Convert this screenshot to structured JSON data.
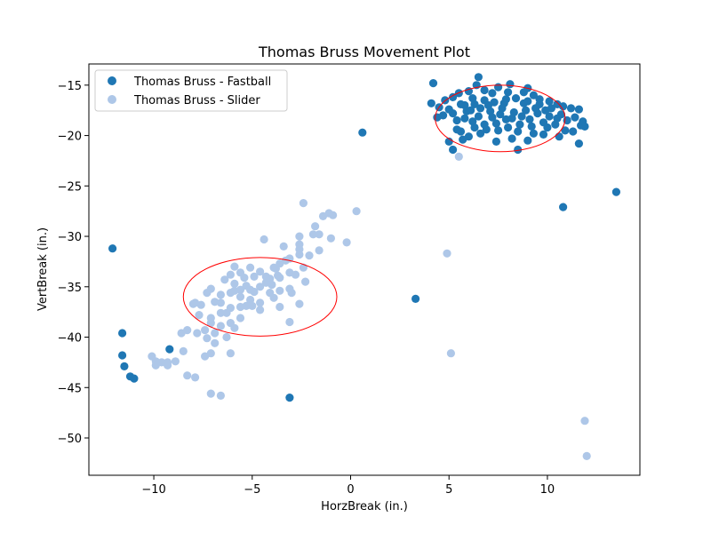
{
  "chart_data": {
    "type": "scatter",
    "title": "Thomas Bruss Movement Plot",
    "xlabel": "HorzBreak (in.)",
    "ylabel": "VertBreak (in.)",
    "xlim": [
      -13.3,
      14.7
    ],
    "ylim": [
      -53.7,
      -12.9
    ],
    "xticks": [
      -10,
      -5,
      0,
      5,
      10
    ],
    "yticks": [
      -50,
      -45,
      -40,
      -35,
      -30,
      -25,
      -20,
      -15
    ],
    "xtick_labels": [
      "−10",
      "−5",
      "0",
      "5",
      "10"
    ],
    "ytick_labels": [
      "−50",
      "−45",
      "−40",
      "−35",
      "−30",
      "−25",
      "−20",
      "−15"
    ],
    "grid": false,
    "legend_position": "top-left",
    "series": [
      {
        "name": "Thomas Bruss - Slider",
        "color": "#aec7e8",
        "points": [
          [
            -2.4,
            -26.7
          ],
          [
            -1.4,
            -28.0
          ],
          [
            -1.1,
            -27.7
          ],
          [
            -0.9,
            -27.9
          ],
          [
            0.3,
            -27.5
          ],
          [
            -1.8,
            -29.0
          ],
          [
            -1.9,
            -29.8
          ],
          [
            -1.6,
            -29.8
          ],
          [
            -2.6,
            -30.0
          ],
          [
            -2.6,
            -30.8
          ],
          [
            -4.4,
            -30.3
          ],
          [
            -3.4,
            -31.0
          ],
          [
            -1.0,
            -30.2
          ],
          [
            -0.2,
            -30.6
          ],
          [
            -2.6,
            -31.3
          ],
          [
            -2.6,
            -31.8
          ],
          [
            -3.3,
            -32.4
          ],
          [
            -3.1,
            -32.2
          ],
          [
            -2.1,
            -31.9
          ],
          [
            -1.6,
            -31.4
          ],
          [
            -3.6,
            -32.7
          ],
          [
            -3.9,
            -33.1
          ],
          [
            -2.4,
            -33.1
          ],
          [
            -3.1,
            -33.6
          ],
          [
            -2.8,
            -33.8
          ],
          [
            -3.7,
            -33.9
          ],
          [
            -4.1,
            -34.2
          ],
          [
            -4.6,
            -33.5
          ],
          [
            -5.1,
            -33.1
          ],
          [
            -5.6,
            -33.6
          ],
          [
            -5.9,
            -33.0
          ],
          [
            -6.1,
            -33.8
          ],
          [
            -5.4,
            -34.1
          ],
          [
            -4.9,
            -34.0
          ],
          [
            -4.3,
            -34.6
          ],
          [
            -3.6,
            -34.1
          ],
          [
            -2.3,
            -34.5
          ],
          [
            -3.1,
            -35.2
          ],
          [
            -3.6,
            -35.4
          ],
          [
            -4.1,
            -35.6
          ],
          [
            -4.6,
            -35.0
          ],
          [
            -5.1,
            -35.3
          ],
          [
            -5.6,
            -35.3
          ],
          [
            -6.1,
            -35.6
          ],
          [
            -6.6,
            -35.8
          ],
          [
            -7.1,
            -35.2
          ],
          [
            -7.3,
            -35.6
          ],
          [
            -5.9,
            -34.7
          ],
          [
            -5.3,
            -34.9
          ],
          [
            -4.9,
            -35.5
          ],
          [
            -5.6,
            -36.0
          ],
          [
            -5.1,
            -36.3
          ],
          [
            -4.6,
            -36.6
          ],
          [
            -3.9,
            -36.1
          ],
          [
            -3.0,
            -35.6
          ],
          [
            -2.6,
            -36.7
          ],
          [
            -3.6,
            -37.0
          ],
          [
            -4.6,
            -37.3
          ],
          [
            -5.6,
            -37.0
          ],
          [
            -6.1,
            -37.1
          ],
          [
            -6.6,
            -36.6
          ],
          [
            -6.9,
            -36.5
          ],
          [
            -7.6,
            -36.8
          ],
          [
            -7.9,
            -36.6
          ],
          [
            -6.3,
            -37.6
          ],
          [
            -5.6,
            -38.1
          ],
          [
            -6.1,
            -38.6
          ],
          [
            -5.9,
            -39.1
          ],
          [
            -6.6,
            -38.9
          ],
          [
            -7.1,
            -38.6
          ],
          [
            -7.4,
            -39.3
          ],
          [
            -6.9,
            -39.6
          ],
          [
            -6.3,
            -40.0
          ],
          [
            -6.9,
            -40.6
          ],
          [
            -7.3,
            -40.1
          ],
          [
            -7.8,
            -39.6
          ],
          [
            -8.3,
            -39.3
          ],
          [
            -8.6,
            -39.6
          ],
          [
            -7.1,
            -38.1
          ],
          [
            -6.6,
            -37.6
          ],
          [
            -5.3,
            -36.9
          ],
          [
            -5.9,
            -35.4
          ],
          [
            -6.4,
            -34.3
          ],
          [
            -3.1,
            -38.5
          ],
          [
            -7.1,
            -41.6
          ],
          [
            -7.4,
            -41.9
          ],
          [
            -6.1,
            -41.6
          ],
          [
            -8.5,
            -41.4
          ],
          [
            -8.3,
            -43.8
          ],
          [
            -8.9,
            -42.4
          ],
          [
            -9.3,
            -42.5
          ],
          [
            -9.6,
            -42.5
          ],
          [
            -9.9,
            -42.4
          ],
          [
            -10.1,
            -41.9
          ],
          [
            -9.9,
            -42.8
          ],
          [
            -9.3,
            -42.8
          ],
          [
            -7.9,
            -44.0
          ],
          [
            -7.1,
            -45.6
          ],
          [
            -6.6,
            -45.8
          ],
          [
            -7.7,
            -37.8
          ],
          [
            -8.0,
            -36.7
          ],
          [
            4.9,
            -31.7
          ],
          [
            5.1,
            -41.6
          ],
          [
            11.9,
            -48.3
          ],
          [
            12.0,
            -51.8
          ],
          [
            5.5,
            -22.1
          ],
          [
            -4.3,
            -34.0
          ],
          [
            -3.8,
            -33.2
          ],
          [
            -5.0,
            -36.9
          ],
          [
            -4.0,
            -34.8
          ]
        ]
      },
      {
        "name": "Thomas Bruss - Fastball",
        "color": "#1f77b4",
        "points": [
          [
            -12.1,
            -31.2
          ],
          [
            -11.6,
            -39.6
          ],
          [
            -11.6,
            -41.8
          ],
          [
            -11.5,
            -42.9
          ],
          [
            -11.2,
            -43.9
          ],
          [
            -11.0,
            -44.1
          ],
          [
            -9.2,
            -41.2
          ],
          [
            -3.1,
            -46.0
          ],
          [
            0.6,
            -19.7
          ],
          [
            3.3,
            -36.2
          ],
          [
            10.8,
            -27.1
          ],
          [
            13.5,
            -25.6
          ],
          [
            11.6,
            -20.8
          ],
          [
            8.5,
            -21.4
          ],
          [
            4.2,
            -14.8
          ],
          [
            4.1,
            -16.8
          ],
          [
            4.5,
            -17.2
          ],
          [
            4.7,
            -18.0
          ],
          [
            5.0,
            -20.6
          ],
          [
            5.2,
            -21.4
          ],
          [
            5.4,
            -18.5
          ],
          [
            5.6,
            -19.6
          ],
          [
            5.8,
            -17.0
          ],
          [
            6.0,
            -15.6
          ],
          [
            6.4,
            -15.0
          ],
          [
            6.5,
            -14.2
          ],
          [
            7.2,
            -15.8
          ],
          [
            7.5,
            -15.2
          ],
          [
            8.1,
            -14.9
          ],
          [
            8.8,
            -15.7
          ],
          [
            9.3,
            -16.0
          ],
          [
            9.6,
            -16.4
          ],
          [
            10.1,
            -16.6
          ],
          [
            10.5,
            -16.9
          ],
          [
            10.8,
            -17.1
          ],
          [
            11.2,
            -17.3
          ],
          [
            11.6,
            -17.4
          ],
          [
            11.8,
            -18.6
          ],
          [
            11.9,
            -19.1
          ],
          [
            11.3,
            -19.6
          ],
          [
            10.6,
            -20.1
          ],
          [
            9.8,
            -19.9
          ],
          [
            9.0,
            -20.5
          ],
          [
            8.2,
            -20.3
          ],
          [
            7.4,
            -20.6
          ],
          [
            6.6,
            -19.8
          ],
          [
            6.0,
            -20.1
          ],
          [
            5.4,
            -19.4
          ],
          [
            5.2,
            -17.8
          ],
          [
            4.8,
            -16.5
          ],
          [
            5.2,
            -16.2
          ],
          [
            5.5,
            -15.8
          ],
          [
            6.2,
            -16.3
          ],
          [
            6.8,
            -16.5
          ],
          [
            7.3,
            -16.7
          ],
          [
            7.9,
            -16.4
          ],
          [
            8.4,
            -16.3
          ],
          [
            9.0,
            -16.6
          ],
          [
            9.6,
            -16.9
          ],
          [
            10.2,
            -17.3
          ],
          [
            10.7,
            -17.9
          ],
          [
            11.0,
            -18.5
          ],
          [
            10.4,
            -18.9
          ],
          [
            9.8,
            -18.7
          ],
          [
            9.2,
            -19.1
          ],
          [
            8.6,
            -18.9
          ],
          [
            8.0,
            -19.2
          ],
          [
            7.4,
            -18.8
          ],
          [
            6.8,
            -18.9
          ],
          [
            6.2,
            -18.6
          ],
          [
            5.8,
            -18.3
          ],
          [
            6.1,
            -17.5
          ],
          [
            6.6,
            -17.3
          ],
          [
            7.1,
            -17.6
          ],
          [
            7.7,
            -17.3
          ],
          [
            8.3,
            -17.7
          ],
          [
            8.9,
            -17.5
          ],
          [
            9.5,
            -17.8
          ],
          [
            10.1,
            -18.1
          ],
          [
            9.4,
            -17.3
          ],
          [
            8.7,
            -18.1
          ],
          [
            7.9,
            -18.4
          ],
          [
            7.2,
            -18.2
          ],
          [
            6.5,
            -18.1
          ],
          [
            5.9,
            -17.6
          ],
          [
            5.6,
            -16.9
          ],
          [
            6.3,
            -16.9
          ],
          [
            7.0,
            -17.0
          ],
          [
            7.6,
            -17.9
          ],
          [
            8.2,
            -18.3
          ],
          [
            8.8,
            -16.8
          ],
          [
            9.9,
            -17.5
          ],
          [
            10.5,
            -18.3
          ],
          [
            9.1,
            -18.4
          ],
          [
            7.8,
            -16.8
          ],
          [
            6.9,
            -19.4
          ],
          [
            8.5,
            -19.6
          ],
          [
            10.0,
            -19.2
          ],
          [
            4.4,
            -18.2
          ],
          [
            11.4,
            -18.2
          ],
          [
            6.3,
            -19.2
          ],
          [
            7.5,
            -19.5
          ],
          [
            9.3,
            -19.8
          ],
          [
            10.9,
            -19.5
          ],
          [
            5.0,
            -17.4
          ],
          [
            8.0,
            -15.7
          ],
          [
            9.0,
            -15.3
          ],
          [
            6.8,
            -15.5
          ],
          [
            11.7,
            -19.0
          ],
          [
            5.7,
            -20.4
          ]
        ]
      }
    ],
    "annotations": [
      {
        "type": "ellipse",
        "center": [
          7.6,
          -18.3
        ],
        "radii": [
          3.3,
          3.3
        ],
        "color": "#ff0000"
      },
      {
        "type": "ellipse",
        "center": [
          -4.6,
          -36.0
        ],
        "radii": [
          3.9,
          3.9
        ],
        "color": "#ff0000"
      }
    ],
    "legend": [
      {
        "label": "Thomas Bruss - Fastball",
        "color": "#1f77b4"
      },
      {
        "label": "Thomas Bruss - Slider",
        "color": "#aec7e8"
      }
    ]
  }
}
